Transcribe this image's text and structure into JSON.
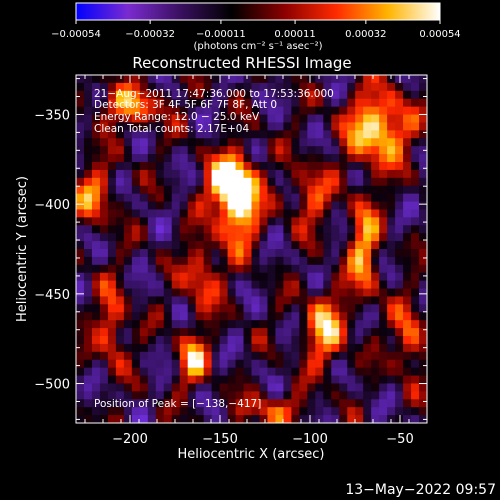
{
  "chart_data": {
    "type": "heatmap",
    "title": "Reconstructed RHESSI Image",
    "xlabel": "Heliocentric X (arcsec)",
    "ylabel": "Heliocentric Y (arcsec)",
    "xlim": [
      -230,
      -35
    ],
    "ylim": [
      -522,
      -328
    ],
    "x_ticks": [
      -200,
      -150,
      -100,
      -50
    ],
    "x_tick_labels": [
      "−200",
      "−150",
      "−100",
      "−50"
    ],
    "y_ticks": [
      -350,
      -400,
      -450,
      -500
    ],
    "y_tick_labels": [
      "−350",
      "−400",
      "−450",
      "−500"
    ],
    "colorbar": {
      "range": [
        -0.00054,
        0.00054
      ],
      "ticks": [
        -0.00054,
        -0.00032,
        -0.00011,
        0.00011,
        0.00032,
        0.00054
      ],
      "tick_labels": [
        "−0.00054",
        "−0.00032",
        "−0.00011",
        "0.00011",
        "0.00032",
        "0.00054"
      ],
      "unit_label": "(photons cm⁻² s⁻¹ asec⁻²)",
      "colors": [
        "#0000ff",
        "#7a2bd0",
        "#3a1060",
        "#000000",
        "#8a0000",
        "#ff2a00",
        "#ffb400",
        "#ffffff"
      ]
    },
    "annotations": {
      "time_range": "21−Aug−2011 17:47:36.000 to 17:53:36.000",
      "detectors": "Detectors: 3F 4F 5F 6F 7F 8F, Att 0",
      "energy": "Energy Range: 12.0 − 25.0 keV",
      "clean": "Clean    Total counts: 2.17E+04",
      "peak": "Position of Peak = [−138,−417]"
    },
    "peak_position": [
      -138,
      -417
    ],
    "sources": [
      {
        "x": -140,
        "y": -400,
        "sx": 8,
        "sy": 16,
        "amp": 1.0
      },
      {
        "x": -145,
        "y": -388,
        "sx": 9,
        "sy": 10,
        "amp": 0.8
      },
      {
        "x": -62,
        "y": -358,
        "sx": 12,
        "sy": 14,
        "amp": 0.95
      },
      {
        "x": -70,
        "y": -425,
        "sx": 6,
        "sy": 20,
        "amp": 0.7
      },
      {
        "x": -92,
        "y": -470,
        "sx": 8,
        "sy": 14,
        "amp": 0.75
      },
      {
        "x": -165,
        "y": -487,
        "sx": 6,
        "sy": 10,
        "amp": 0.7
      },
      {
        "x": -160,
        "y": -440,
        "sx": 7,
        "sy": 14,
        "amp": 0.55
      },
      {
        "x": -200,
        "y": -345,
        "sx": 14,
        "sy": 8,
        "amp": 0.6
      },
      {
        "x": -220,
        "y": -395,
        "sx": 8,
        "sy": 12,
        "amp": 0.55
      },
      {
        "x": -210,
        "y": -468,
        "sx": 6,
        "sy": 16,
        "amp": 0.55
      },
      {
        "x": -45,
        "y": -475,
        "sx": 6,
        "sy": 14,
        "amp": 0.6
      },
      {
        "x": -100,
        "y": -395,
        "sx": 8,
        "sy": 12,
        "amp": 0.5
      },
      {
        "x": -120,
        "y": -515,
        "sx": 12,
        "sy": 6,
        "amp": 0.5
      }
    ]
  },
  "footer": {
    "date": "13−May−2022 09:57"
  }
}
